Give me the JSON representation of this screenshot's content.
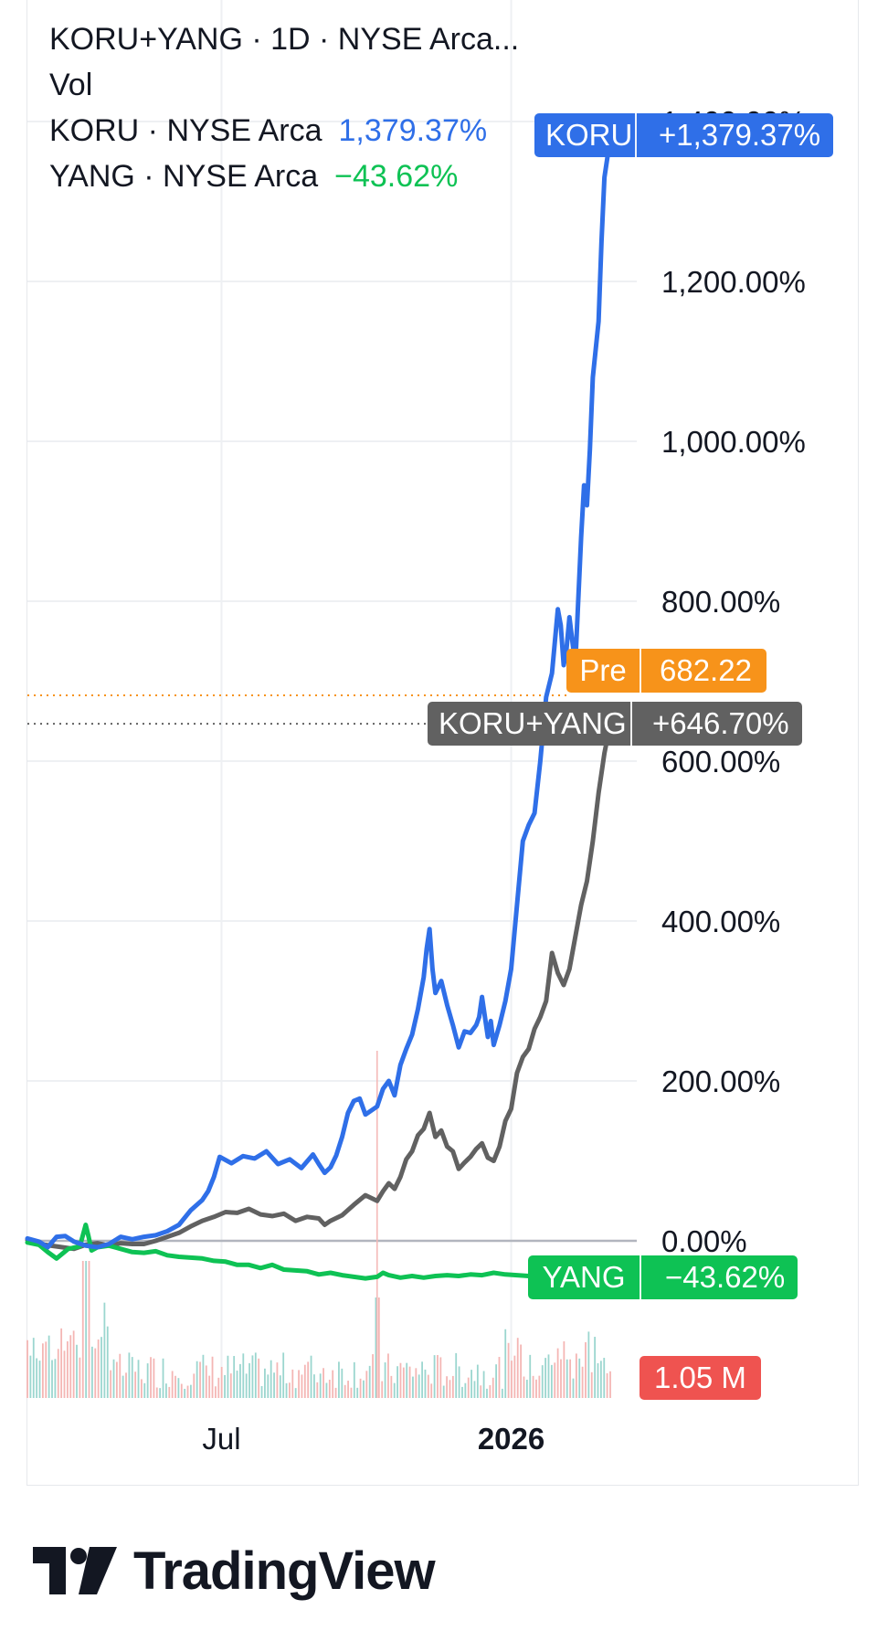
{
  "legend": {
    "main": "KORU+YANG · 1D · NYSE Arca...",
    "vol": "Vol",
    "koru_name": "KORU · NYSE Arca",
    "koru_value": "1,379.37%",
    "yang_name": "YANG · NYSE Arca",
    "yang_value": "−43.62%"
  },
  "tags": {
    "koru": {
      "name": "KORU",
      "value": "+1,379.37%"
    },
    "pre": {
      "name": "Pre",
      "value": "682.22"
    },
    "combo": {
      "name": "KORU+YANG",
      "value": "+646.70%"
    },
    "yang": {
      "name": "YANG",
      "value": "−43.62%"
    },
    "volume": {
      "value": "1.05 M"
    }
  },
  "colors": {
    "koru": "#2f6fe8",
    "yang": "#0ec254",
    "combo": "#616161",
    "pre": "#f7931a",
    "volume_tag": "#ef5350",
    "vol_up": "#9bd6cf",
    "vol_down": "#f4b6b4"
  },
  "brand": {
    "name": "TradingView",
    "icon": "tradingview-logo-icon"
  },
  "chart_data": {
    "type": "line",
    "y_unit": "%",
    "yticks": [
      {
        "value": 0,
        "label": "0.00%"
      },
      {
        "value": 200,
        "label": "200.00%"
      },
      {
        "value": 400,
        "label": "400.00%"
      },
      {
        "value": 600,
        "label": "600.00%"
      },
      {
        "value": 800,
        "label": "800.00%"
      },
      {
        "value": 1000,
        "label": "1,000.00%"
      },
      {
        "value": 1200,
        "label": "1,200.00%"
      },
      {
        "value": 1400,
        "label": "1,400.00%"
      }
    ],
    "xticks": [
      {
        "t": 0.333,
        "label": "Jul",
        "bold": false
      },
      {
        "t": 0.83,
        "label": "2026",
        "bold": true
      }
    ],
    "grid": true,
    "zero_line": true,
    "series": [
      {
        "name": "KORU",
        "color": "#2f6fe8",
        "last_value": 1379.37,
        "points": [
          [
            0,
            3
          ],
          [
            0.02,
            -1
          ],
          [
            0.035,
            -8
          ],
          [
            0.05,
            5
          ],
          [
            0.065,
            6
          ],
          [
            0.08,
            -1
          ],
          [
            0.1,
            -6
          ],
          [
            0.12,
            -8
          ],
          [
            0.14,
            -4
          ],
          [
            0.16,
            5
          ],
          [
            0.18,
            2
          ],
          [
            0.2,
            5
          ],
          [
            0.22,
            7
          ],
          [
            0.24,
            12
          ],
          [
            0.26,
            20
          ],
          [
            0.28,
            38
          ],
          [
            0.3,
            51
          ],
          [
            0.31,
            62
          ],
          [
            0.32,
            80
          ],
          [
            0.33,
            105
          ],
          [
            0.35,
            97
          ],
          [
            0.37,
            106
          ],
          [
            0.39,
            103
          ],
          [
            0.41,
            112
          ],
          [
            0.43,
            96
          ],
          [
            0.45,
            102
          ],
          [
            0.47,
            91
          ],
          [
            0.49,
            108
          ],
          [
            0.5,
            96
          ],
          [
            0.51,
            85
          ],
          [
            0.52,
            92
          ],
          [
            0.53,
            107
          ],
          [
            0.54,
            130
          ],
          [
            0.55,
            160
          ],
          [
            0.56,
            175
          ],
          [
            0.57,
            178
          ],
          [
            0.58,
            158
          ],
          [
            0.6,
            168
          ],
          [
            0.61,
            190
          ],
          [
            0.62,
            200
          ],
          [
            0.63,
            182
          ],
          [
            0.64,
            220
          ],
          [
            0.65,
            240
          ],
          [
            0.66,
            258
          ],
          [
            0.67,
            290
          ],
          [
            0.68,
            330
          ],
          [
            0.685,
            365
          ],
          [
            0.69,
            390
          ],
          [
            0.695,
            340
          ],
          [
            0.7,
            310
          ],
          [
            0.71,
            325
          ],
          [
            0.72,
            295
          ],
          [
            0.73,
            270
          ],
          [
            0.74,
            242
          ],
          [
            0.75,
            262
          ],
          [
            0.76,
            260
          ],
          [
            0.77,
            270
          ],
          [
            0.775,
            280
          ],
          [
            0.78,
            305
          ],
          [
            0.79,
            255
          ],
          [
            0.795,
            275
          ],
          [
            0.8,
            245
          ],
          [
            0.81,
            270
          ],
          [
            0.82,
            300
          ],
          [
            0.83,
            340
          ],
          [
            0.84,
            420
          ],
          [
            0.85,
            500
          ],
          [
            0.86,
            520
          ],
          [
            0.87,
            535
          ],
          [
            0.88,
            600
          ],
          [
            0.89,
            680
          ],
          [
            0.9,
            710
          ],
          [
            0.91,
            790
          ],
          [
            0.915,
            770
          ],
          [
            0.92,
            720
          ],
          [
            0.925,
            740
          ],
          [
            0.93,
            780
          ],
          [
            0.94,
            720
          ],
          [
            0.945,
            800
          ],
          [
            0.95,
            880
          ],
          [
            0.955,
            945
          ],
          [
            0.96,
            920
          ],
          [
            0.965,
            990
          ],
          [
            0.97,
            1080
          ],
          [
            0.98,
            1150
          ],
          [
            0.985,
            1250
          ],
          [
            0.99,
            1330
          ],
          [
            1,
            1379.37
          ]
        ]
      },
      {
        "name": "KORU+YANG",
        "color": "#616161",
        "last_value": 646.7,
        "points": [
          [
            0,
            1
          ],
          [
            0.02,
            -4
          ],
          [
            0.05,
            -7
          ],
          [
            0.08,
            -10
          ],
          [
            0.1,
            -5
          ],
          [
            0.12,
            -3
          ],
          [
            0.14,
            -6
          ],
          [
            0.16,
            -3
          ],
          [
            0.18,
            -4
          ],
          [
            0.2,
            -4
          ],
          [
            0.22,
            0
          ],
          [
            0.24,
            5
          ],
          [
            0.26,
            10
          ],
          [
            0.28,
            18
          ],
          [
            0.3,
            25
          ],
          [
            0.32,
            30
          ],
          [
            0.34,
            36
          ],
          [
            0.36,
            35
          ],
          [
            0.38,
            40
          ],
          [
            0.4,
            33
          ],
          [
            0.42,
            31
          ],
          [
            0.44,
            34
          ],
          [
            0.46,
            25
          ],
          [
            0.48,
            30
          ],
          [
            0.5,
            28
          ],
          [
            0.51,
            20
          ],
          [
            0.52,
            25
          ],
          [
            0.54,
            32
          ],
          [
            0.56,
            45
          ],
          [
            0.58,
            57
          ],
          [
            0.6,
            50
          ],
          [
            0.61,
            62
          ],
          [
            0.62,
            72
          ],
          [
            0.63,
            65
          ],
          [
            0.64,
            80
          ],
          [
            0.65,
            102
          ],
          [
            0.66,
            112
          ],
          [
            0.67,
            132
          ],
          [
            0.68,
            140
          ],
          [
            0.69,
            160
          ],
          [
            0.7,
            130
          ],
          [
            0.71,
            138
          ],
          [
            0.72,
            118
          ],
          [
            0.73,
            112
          ],
          [
            0.74,
            90
          ],
          [
            0.75,
            98
          ],
          [
            0.76,
            105
          ],
          [
            0.77,
            115
          ],
          [
            0.78,
            122
          ],
          [
            0.79,
            104
          ],
          [
            0.8,
            100
          ],
          [
            0.81,
            118
          ],
          [
            0.82,
            150
          ],
          [
            0.83,
            165
          ],
          [
            0.84,
            210
          ],
          [
            0.85,
            230
          ],
          [
            0.86,
            240
          ],
          [
            0.87,
            265
          ],
          [
            0.88,
            280
          ],
          [
            0.89,
            300
          ],
          [
            0.9,
            360
          ],
          [
            0.91,
            335
          ],
          [
            0.92,
            320
          ],
          [
            0.93,
            340
          ],
          [
            0.94,
            380
          ],
          [
            0.95,
            420
          ],
          [
            0.96,
            450
          ],
          [
            0.97,
            500
          ],
          [
            0.98,
            560
          ],
          [
            0.99,
            610
          ],
          [
            1,
            646.7
          ]
        ]
      },
      {
        "name": "YANG",
        "color": "#0ec254",
        "last_value": -43.62,
        "points": [
          [
            0,
            -2
          ],
          [
            0.02,
            -5
          ],
          [
            0.035,
            -14
          ],
          [
            0.05,
            -22
          ],
          [
            0.07,
            -10
          ],
          [
            0.09,
            -7
          ],
          [
            0.1,
            20
          ],
          [
            0.105,
            5
          ],
          [
            0.11,
            -12
          ],
          [
            0.12,
            -8
          ],
          [
            0.14,
            -6
          ],
          [
            0.16,
            -10
          ],
          [
            0.18,
            -14
          ],
          [
            0.2,
            -15
          ],
          [
            0.22,
            -13
          ],
          [
            0.24,
            -18
          ],
          [
            0.26,
            -20
          ],
          [
            0.28,
            -21
          ],
          [
            0.3,
            -22
          ],
          [
            0.32,
            -25
          ],
          [
            0.34,
            -26
          ],
          [
            0.36,
            -30
          ],
          [
            0.38,
            -30
          ],
          [
            0.4,
            -34
          ],
          [
            0.42,
            -30
          ],
          [
            0.44,
            -36
          ],
          [
            0.46,
            -37
          ],
          [
            0.48,
            -38
          ],
          [
            0.5,
            -42
          ],
          [
            0.52,
            -40
          ],
          [
            0.54,
            -43
          ],
          [
            0.56,
            -45
          ],
          [
            0.58,
            -47
          ],
          [
            0.6,
            -45
          ],
          [
            0.61,
            -40
          ],
          [
            0.62,
            -43
          ],
          [
            0.64,
            -46
          ],
          [
            0.66,
            -44
          ],
          [
            0.68,
            -46
          ],
          [
            0.7,
            -44
          ],
          [
            0.72,
            -43
          ],
          [
            0.74,
            -44
          ],
          [
            0.76,
            -42
          ],
          [
            0.78,
            -43
          ],
          [
            0.8,
            -40
          ],
          [
            0.82,
            -42
          ],
          [
            0.84,
            -43
          ],
          [
            0.86,
            -44
          ],
          [
            0.88,
            -43
          ],
          [
            0.9,
            -44
          ],
          [
            0.92,
            -42
          ],
          [
            0.94,
            -44
          ],
          [
            0.96,
            -43
          ],
          [
            0.98,
            -44
          ],
          [
            1,
            -43.62
          ]
        ]
      }
    ],
    "reference_lines": [
      {
        "name": "Pre",
        "value": 682.22,
        "color": "#f7931a",
        "style": "dotted"
      },
      {
        "name": "KORU+YANG",
        "value": 646.7,
        "color": "#616161",
        "style": "dotted"
      }
    ],
    "volume": {
      "last": "1.05 M",
      "bars": 190
    }
  }
}
